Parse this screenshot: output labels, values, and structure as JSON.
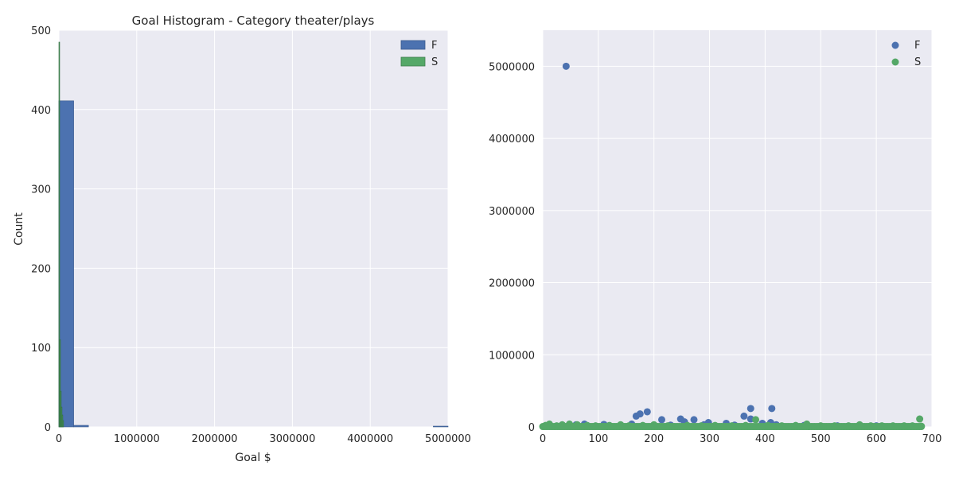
{
  "chart_data": [
    {
      "type": "bar",
      "subtype": "histogram",
      "title": "Goal Histogram - Category theater/plays",
      "xlabel": "Goal $",
      "ylabel": "Count",
      "xlim": [
        0,
        5000000
      ],
      "ylim": [
        0,
        500
      ],
      "xticks": [
        "0",
        "1000000",
        "2000000",
        "3000000",
        "4000000",
        "5000000"
      ],
      "yticks": [
        "0",
        "100",
        "200",
        "300",
        "400",
        "500"
      ],
      "grid": true,
      "legend_position": "top-right",
      "series": [
        {
          "name": "F",
          "color": "#4c72b0",
          "bins": [
            {
              "x0": 0,
              "x1": 190000,
              "count": 411
            },
            {
              "x0": 190000,
              "x1": 380000,
              "count": 2
            },
            {
              "x0": 4810000,
              "x1": 5000000,
              "count": 1
            }
          ]
        },
        {
          "name": "S",
          "color": "#55a868",
          "bins": [
            {
              "x0": 0,
              "x1": 10000,
              "count": 485
            },
            {
              "x0": 10000,
              "x1": 20000,
              "count": 110
            },
            {
              "x0": 20000,
              "x1": 30000,
              "count": 45
            },
            {
              "x0": 30000,
              "x1": 40000,
              "count": 25
            },
            {
              "x0": 40000,
              "x1": 50000,
              "count": 15
            },
            {
              "x0": 50000,
              "x1": 60000,
              "count": 8
            }
          ]
        }
      ]
    },
    {
      "type": "scatter",
      "title": "",
      "xlabel": "",
      "ylabel": "",
      "xlim": [
        0,
        700
      ],
      "ylim": [
        0,
        5500000
      ],
      "xticks": [
        "0",
        "100",
        "200",
        "300",
        "400",
        "500",
        "600",
        "700"
      ],
      "yticks": [
        "0",
        "1000000",
        "2000000",
        "3000000",
        "4000000",
        "5000000"
      ],
      "grid": true,
      "legend_position": "top-right",
      "series": [
        {
          "name": "F",
          "color": "#4c72b0",
          "points": [
            [
              42,
              5000000
            ],
            [
              168,
              150000
            ],
            [
              175,
              180000
            ],
            [
              188,
              210000
            ],
            [
              214,
              100000
            ],
            [
              248,
              110000
            ],
            [
              255,
              70000
            ],
            [
              272,
              100000
            ],
            [
              298,
              60000
            ],
            [
              330,
              50000
            ],
            [
              362,
              150000
            ],
            [
              374,
              255000
            ],
            [
              374,
              110000
            ],
            [
              395,
              50000
            ],
            [
              410,
              60000
            ],
            [
              412,
              255000
            ],
            [
              60,
              30000
            ],
            [
              75,
              40000
            ],
            [
              110,
              35000
            ],
            [
              160,
              40000
            ],
            [
              230,
              25000
            ],
            [
              290,
              30000
            ],
            [
              345,
              25000
            ],
            [
              420,
              30000
            ],
            [
              470,
              20000
            ],
            [
              530,
              15000
            ],
            [
              600,
              15000
            ]
          ]
        },
        {
          "name": "S",
          "color": "#55a868",
          "points": [
            [
              5,
              20000
            ],
            [
              12,
              40000
            ],
            [
              25,
              15000
            ],
            [
              35,
              30000
            ],
            [
              48,
              40000
            ],
            [
              62,
              30000
            ],
            [
              80,
              20000
            ],
            [
              95,
              15000
            ],
            [
              120,
              20000
            ],
            [
              140,
              30000
            ],
            [
              155,
              15000
            ],
            [
              180,
              20000
            ],
            [
              200,
              30000
            ],
            [
              225,
              15000
            ],
            [
              260,
              20000
            ],
            [
              285,
              15000
            ],
            [
              310,
              20000
            ],
            [
              340,
              15000
            ],
            [
              365,
              20000
            ],
            [
              383,
              100000
            ],
            [
              405,
              20000
            ],
            [
              430,
              15000
            ],
            [
              455,
              20000
            ],
            [
              475,
              40000
            ],
            [
              500,
              15000
            ],
            [
              525,
              15000
            ],
            [
              550,
              15000
            ],
            [
              570,
              30000
            ],
            [
              590,
              15000
            ],
            [
              610,
              15000
            ],
            [
              630,
              15000
            ],
            [
              650,
              15000
            ],
            [
              665,
              15000
            ],
            [
              678,
              110000
            ],
            [
              681,
              10000
            ]
          ]
        }
      ]
    }
  ]
}
